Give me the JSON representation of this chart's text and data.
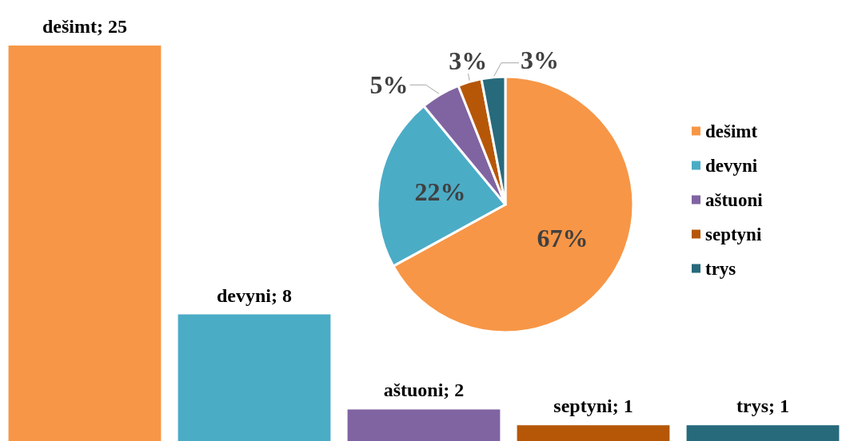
{
  "chart_data": [
    {
      "type": "bar",
      "categories": [
        null,
        null,
        null,
        null,
        null
      ],
      "values": [
        25,
        8,
        2,
        1,
        1
      ],
      "value_labels": [
        "dešimt; 25",
        "devyni; 8",
        "aštuoni; 2",
        "septyni; 1",
        "trys; 1"
      ],
      "colors": [
        "#f79646",
        "#4bacc6",
        "#8064a2",
        "#b65708",
        "#276a7c"
      ],
      "tick_labels": false,
      "grid": false,
      "legend": false
    },
    {
      "type": "pie",
      "categories": [
        "dešimt",
        "devyni",
        "aštuoni",
        "septyni",
        "trys"
      ],
      "values": [
        67,
        22,
        5,
        3,
        3
      ],
      "value_labels": [
        "67%",
        "22%",
        "5%",
        "3%",
        "3%"
      ],
      "colors": [
        "#f79646",
        "#4bacc6",
        "#8064a2",
        "#b65708",
        "#276a7c"
      ],
      "legend": "right"
    }
  ]
}
